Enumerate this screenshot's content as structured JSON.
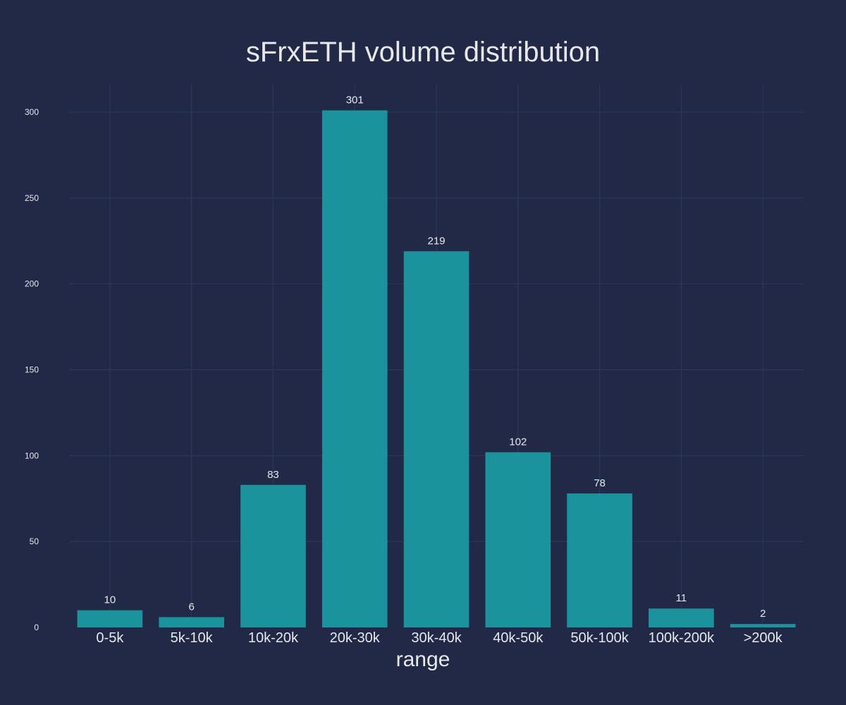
{
  "chart_data": {
    "type": "bar",
    "title": "sFrxETH volume distribution",
    "xlabel": "range",
    "ylabel": "",
    "categories": [
      "0-5k",
      "5k-10k",
      "10k-20k",
      "20k-30k",
      "30k-40k",
      "40k-50k",
      "50k-100k",
      "100k-200k",
      ">200k"
    ],
    "values": [
      10,
      6,
      83,
      301,
      219,
      102,
      78,
      11,
      2
    ],
    "ylim": [
      0,
      316
    ],
    "yticks": [
      0,
      50,
      100,
      150,
      200,
      250,
      300
    ],
    "grid": true,
    "bar_color": "#1a939d",
    "background": "#212946"
  }
}
